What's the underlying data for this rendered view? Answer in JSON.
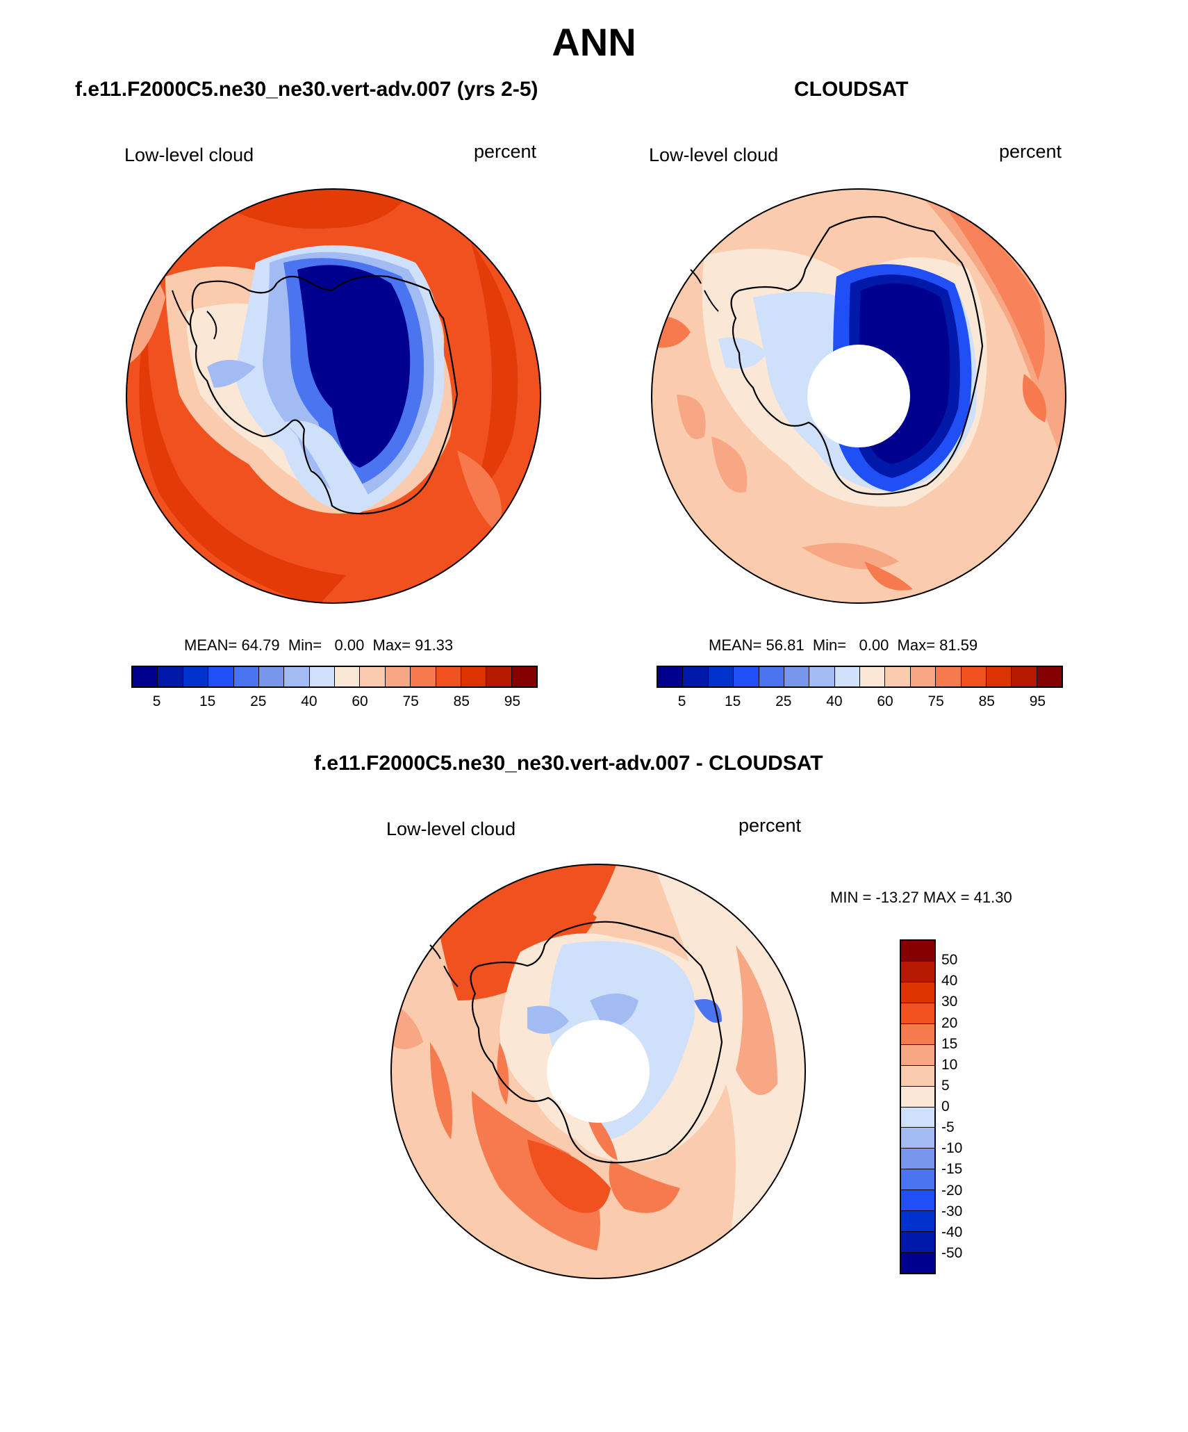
{
  "page_title": "ANN",
  "panels": [
    {
      "title": "f.e11.F2000C5.ne30_ne30.vert-adv.007 (yrs 2-5)",
      "variable": "Low-level cloud",
      "units": "percent",
      "mean_label": "MEAN=",
      "mean": "64.79",
      "min_label": "Min=",
      "min": "0.00",
      "max_label": "Max=",
      "max": "91.33"
    },
    {
      "title": "CLOUDSAT",
      "variable": "Low-level cloud",
      "units": "percent",
      "mean_label": "MEAN=",
      "mean": "56.81",
      "min_label": "Min=",
      "min": "0.00",
      "max_label": "Max=",
      "max": "81.59"
    }
  ],
  "diff_panel": {
    "title": "f.e11.F2000C5.ne30_ne30.vert-adv.007 - CLOUDSAT",
    "variable": "Low-level cloud",
    "units": "percent",
    "minmax": "MIN = -13.27 MAX =  41.30"
  },
  "colorbar_main": {
    "colors": [
      "#00008f",
      "#0019a8",
      "#0033cc",
      "#1f4ff5",
      "#4a74f0",
      "#7797ec",
      "#a3bbf3",
      "#cfe0fb",
      "#fbe7d6",
      "#fbcbae",
      "#f7a783",
      "#f77a4f",
      "#f1511f",
      "#dd3300",
      "#b51a00",
      "#850000"
    ],
    "tick_labels": [
      "5",
      "15",
      "25",
      "40",
      "60",
      "75",
      "85",
      "95"
    ]
  },
  "colorbar_diff": {
    "colors": [
      "#850000",
      "#b51a00",
      "#dd3300",
      "#f1511f",
      "#f77a4f",
      "#f7a783",
      "#fbcbae",
      "#fbe7d6",
      "#cfe0fb",
      "#a3bbf3",
      "#7797ec",
      "#4a74f0",
      "#1f4ff5",
      "#0033cc",
      "#0019a8",
      "#00008f"
    ],
    "tick_labels": [
      "50",
      "40",
      "30",
      "20",
      "15",
      "10",
      "5",
      "0",
      "-5",
      "-10",
      "-15",
      "-20",
      "-30",
      "-40",
      "-50"
    ]
  }
}
